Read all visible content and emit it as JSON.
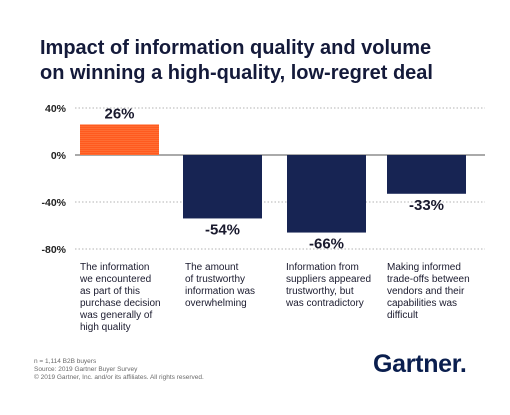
{
  "header": {
    "title_lines": [
      "Impact of information quality and volume",
      "on winning a high-quality, low-regret deal"
    ]
  },
  "chart_data": {
    "type": "bar",
    "categories": [
      "The information we encountered as part of this purchase decision was generally of high quality",
      "The amount of trustworthy information was overwhelming",
      "Information from suppliers appeared trustworthy, but was contradictory",
      "Making informed trade-offs between vendors and their capabilities was difficult"
    ],
    "category_lines": [
      [
        "The information",
        "we encountered",
        "as part of this",
        "purchase decision",
        "was generally of",
        "high quality"
      ],
      [
        "The amount",
        "of trustworthy",
        "information was",
        "overwhelming"
      ],
      [
        "Information from",
        "suppliers appeared",
        "trustworthy, but",
        "was contradictory"
      ],
      [
        "Making informed",
        "trade-offs between",
        "vendors and their",
        "capabilities was",
        "difficult"
      ]
    ],
    "values": [
      26,
      -54,
      -66,
      -33
    ],
    "value_labels": [
      "26%",
      "-54%",
      "-66%",
      "-33%"
    ],
    "ylim": [
      -80,
      40
    ],
    "yticks": [
      40,
      0,
      -40,
      -80
    ],
    "ytick_labels": [
      "40%",
      "0%",
      "-40%",
      "-80%"
    ],
    "bar_colors": [
      "#ff5a1f",
      "#172453",
      "#172453",
      "#172453"
    ],
    "gridlines": true
  },
  "footer": {
    "notes": [
      "n = 1,114 B2B buyers",
      "Source: 2019 Gartner Buyer Survey",
      "© 2019 Gartner, Inc. and/or its affiliates. All rights reserved."
    ],
    "logo_text": "Gartner."
  }
}
